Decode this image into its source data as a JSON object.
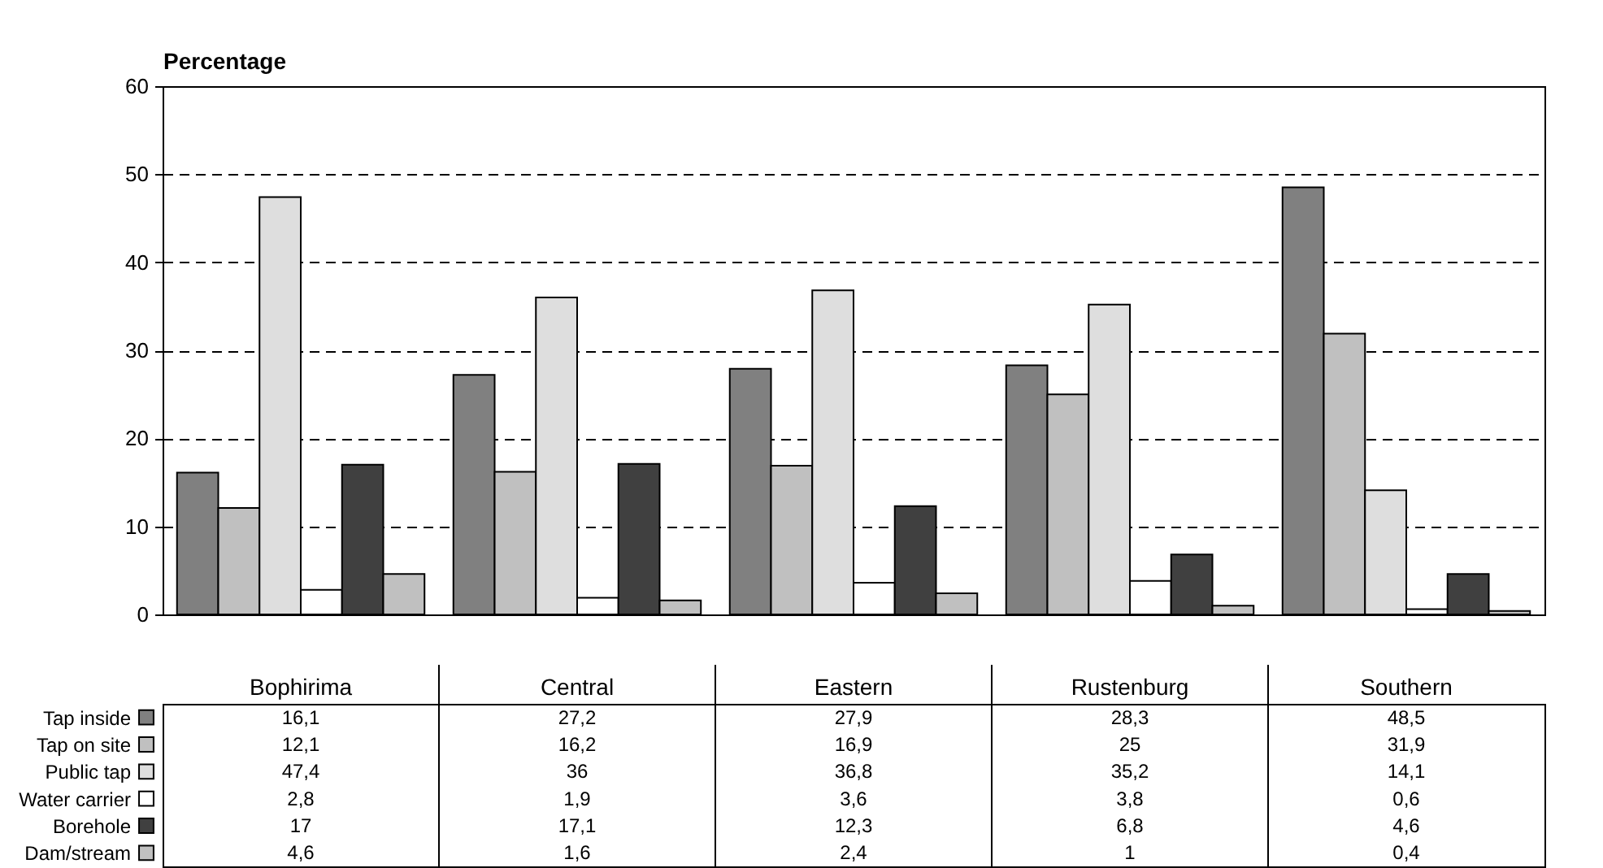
{
  "chart_data": {
    "type": "bar",
    "ylabel": "Percentage",
    "categories": [
      "Bophirima",
      "Central",
      "Eastern",
      "Rustenburg",
      "Southern"
    ],
    "series": [
      {
        "name": "Tap inside",
        "color": "#808080",
        "values": [
          16.1,
          27.2,
          27.9,
          28.3,
          48.5
        ],
        "value_labels": [
          "16,1",
          "27,2",
          "27,9",
          "28,3",
          "48,5"
        ]
      },
      {
        "name": "Tap on site",
        "color": "#c0c0c0",
        "values": [
          12.1,
          16.2,
          16.9,
          25,
          31.9
        ],
        "value_labels": [
          "12,1",
          "16,2",
          "16,9",
          "25",
          "31,9"
        ]
      },
      {
        "name": "Public tap",
        "color": "#dedede",
        "values": [
          47.4,
          36,
          36.8,
          35.2,
          14.1
        ],
        "value_labels": [
          "47,4",
          "36",
          "36,8",
          "35,2",
          "14,1"
        ]
      },
      {
        "name": "Water carrier",
        "color": "#ffffff",
        "values": [
          2.8,
          1.9,
          3.6,
          3.8,
          0.6
        ],
        "value_labels": [
          "2,8",
          "1,9",
          "3,6",
          "3,8",
          "0,6"
        ]
      },
      {
        "name": "Borehole",
        "color": "#404040",
        "values": [
          17,
          17.1,
          12.3,
          6.8,
          4.6
        ],
        "value_labels": [
          "17",
          "17,1",
          "12,3",
          "6,8",
          "4,6"
        ]
      },
      {
        "name": "Dam/stream",
        "color": "#c0c0c0",
        "values": [
          4.6,
          1.6,
          2.4,
          1,
          0.4
        ],
        "value_labels": [
          "4,6",
          "1,6",
          "2,4",
          "1",
          "0,4"
        ]
      }
    ],
    "ylim": [
      0,
      60
    ],
    "yticks": [
      0,
      10,
      20,
      30,
      40,
      50,
      60
    ],
    "grid": "y",
    "legend": "bottom"
  }
}
